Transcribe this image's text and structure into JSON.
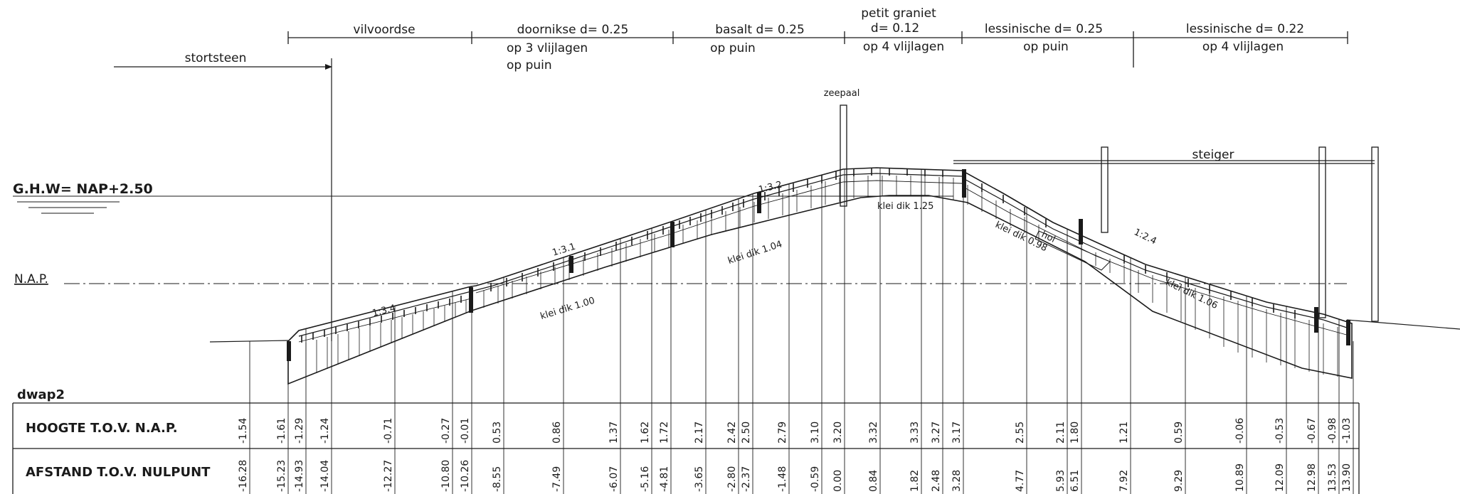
{
  "zones_top": [
    {
      "label": "vilvoordse"
    },
    {
      "label": "doornikse d= 0.25",
      "sub": [
        "op 3  vlijlagen",
        "op puin"
      ]
    },
    {
      "label": "basalt d= 0.25",
      "sub": [
        "op puin"
      ]
    },
    {
      "label_lines": [
        "petit graniet",
        "d= 0.12"
      ],
      "sub": [
        "op 4  vlijlagen"
      ]
    },
    {
      "label": "lessinische d= 0.25",
      "sub": [
        "op puin"
      ]
    },
    {
      "label": "lessinische d= 0.22",
      "sub": [
        "op 4  vlijlagen"
      ]
    }
  ],
  "stortsteen": "stortsteen",
  "zeepaal": "zeepaal",
  "steiger": "steiger",
  "water_levels": {
    "ghw": "G.H.W= NAP+2.50",
    "nap": "N.A.P."
  },
  "slopes": [
    "1:3.4",
    "1:3.1",
    "1:3.2",
    "1:2.4"
  ],
  "klei": [
    "klei dik 1.00",
    "klei dik 1.04",
    "klei dik 1.25",
    "klei dik 0.98",
    "klei dik 1.06"
  ],
  "hol": "hol",
  "profile_id": "dwap2",
  "rows": {
    "hoogte": "HOOGTE T.O.V. N.A.P.",
    "afstand": "AFSTAND T.O.V. NULPUNT"
  },
  "hoogte": [
    "-1.54",
    "-1.61",
    "-1.29",
    "-1.24",
    "-0.71",
    "-0.27",
    "-0.01",
    "0.53",
    "0.86",
    "1.37",
    "1.62",
    "1.72",
    "2.17",
    "2.42",
    "2.50",
    "2.79",
    "3.10",
    "3.20",
    "3.32",
    "3.33",
    "3.27",
    "3.17",
    "2.55",
    "2.11",
    "1.80",
    "1.21",
    "0.59",
    "-0.06",
    "-0.53",
    "-0.67",
    "-0.98",
    "-1.03"
  ],
  "afstand": [
    "-16.28",
    "-15.23",
    "-14.93",
    "-14.04",
    "-12.27",
    "-10.80",
    "-10.26",
    "-8.55",
    "-7.49",
    "-6.07",
    "-5.16",
    "-4.81",
    "-3.65",
    "-2.80",
    "-2.37",
    "-1.48",
    "-0.59",
    "0.00",
    "0.84",
    "1.82",
    "2.48",
    "3.28",
    "4.77",
    "5.93",
    "6.51",
    "7.92",
    "9.29",
    "10.89",
    "12.09",
    "12.98",
    "13.53",
    "13.90"
  ]
}
